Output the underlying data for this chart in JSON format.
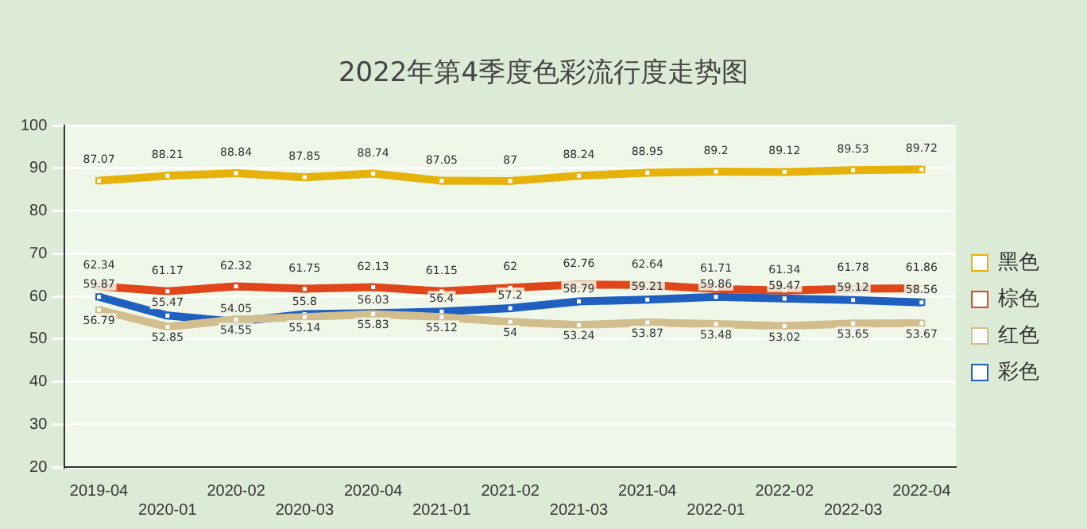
{
  "chart_data": {
    "type": "line",
    "title": "2022年第4季度色彩流行度走势图",
    "categories": [
      "2019-04",
      "2020-01",
      "2020-02",
      "2020-03",
      "2020-04",
      "2021-01",
      "2021-02",
      "2021-03",
      "2021-04",
      "2022-01",
      "2022-02",
      "2022-03",
      "2022-04"
    ],
    "series": [
      {
        "name": "黑色",
        "color": "#e6b20a",
        "values": [
          87.07,
          88.21,
          88.84,
          87.85,
          88.74,
          87.05,
          87,
          88.24,
          88.95,
          89.2,
          89.12,
          89.53,
          89.72
        ]
      },
      {
        "name": "棕色",
        "color": "#e0461a",
        "values": [
          62.34,
          61.17,
          62.32,
          61.75,
          62.13,
          61.15,
          62,
          62.76,
          62.64,
          61.71,
          61.34,
          61.78,
          61.86
        ]
      },
      {
        "name": "红色",
        "color": "#d2bd8c",
        "values": [
          56.79,
          52.85,
          54.55,
          55.14,
          55.83,
          55.12,
          54,
          53.24,
          53.87,
          53.48,
          53.02,
          53.65,
          53.67
        ]
      },
      {
        "name": "彩色",
        "color": "#1e5fc0",
        "values": [
          59.87,
          55.47,
          54.05,
          55.8,
          56.03,
          56.4,
          57.2,
          58.79,
          59.21,
          59.86,
          59.47,
          59.12,
          58.56
        ]
      }
    ],
    "ylim": [
      20,
      100
    ],
    "yticks": [
      20,
      30,
      40,
      50,
      60,
      70,
      80,
      90,
      100
    ],
    "grid": "y",
    "legend": "right",
    "marker": "square",
    "line_style": "solid",
    "data_labels": true
  }
}
